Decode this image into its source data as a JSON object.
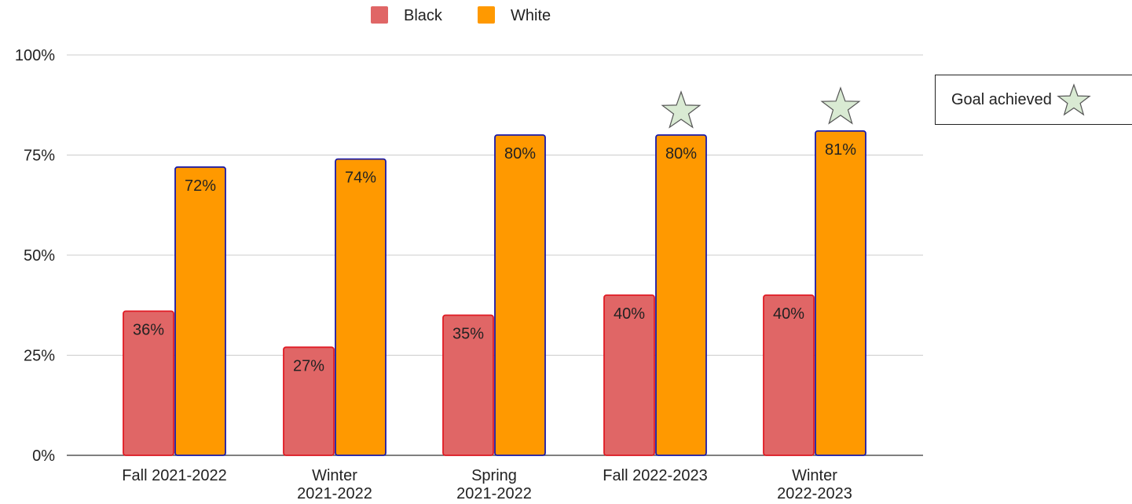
{
  "chart_data": {
    "type": "bar",
    "categories": [
      [
        "Fall 2021-2022"
      ],
      [
        "Winter",
        "2021-2022"
      ],
      [
        "Spring",
        "2021-2022"
      ],
      [
        "Fall 2022-2023"
      ],
      [
        "Winter",
        "2022-2023"
      ]
    ],
    "series": [
      {
        "name": "Black",
        "values": [
          36,
          27,
          35,
          40,
          40
        ],
        "labels": [
          "36%",
          "27%",
          "35%",
          "40%",
          "40%"
        ]
      },
      {
        "name": "White",
        "values": [
          72,
          74,
          80,
          80,
          81
        ],
        "labels": [
          "72%",
          "74%",
          "80%",
          "80%",
          "81%"
        ]
      }
    ],
    "ylim": [
      0,
      100
    ],
    "yticks": [
      0,
      25,
      50,
      75,
      100
    ],
    "ytick_labels": [
      "0%",
      "25%",
      "50%",
      "75%",
      "100%"
    ],
    "grid": true,
    "legend_position": "top-center",
    "goal_achieved": [
      false,
      false,
      false,
      true,
      true
    ]
  },
  "colors": {
    "black_fill": "#e06666",
    "black_border": "#e01b24",
    "white_fill": "#ff9900",
    "white_border": "#1a1aa8",
    "star_fill": "#d9ead3",
    "grid": "#cccccc"
  },
  "annotation": {
    "goal_label": "Goal achieved",
    "icon": "star-icon"
  }
}
